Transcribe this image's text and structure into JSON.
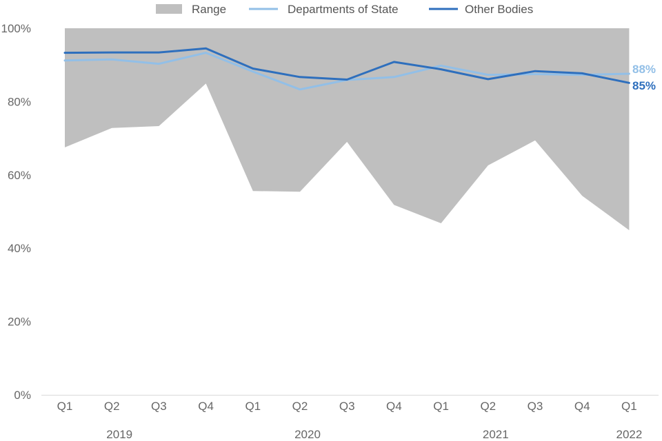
{
  "chart_data": {
    "type": "line",
    "title": "",
    "xlabel": "",
    "ylabel": "",
    "ylim": [
      0,
      100
    ],
    "y_ticks": [
      "0%",
      "20%",
      "40%",
      "60%",
      "80%",
      "100%"
    ],
    "grid": false,
    "legend_placement": "top",
    "categories": [
      "Q1",
      "Q2",
      "Q3",
      "Q4",
      "Q1",
      "Q2",
      "Q3",
      "Q4",
      "Q1",
      "Q2",
      "Q3",
      "Q4",
      "Q1"
    ],
    "year_groups": [
      {
        "label": "2019",
        "start": 0,
        "end": 3
      },
      {
        "label": "2020",
        "start": 4,
        "end": 7
      },
      {
        "label": "2021",
        "start": 8,
        "end": 11
      },
      {
        "label": "2022",
        "start": 12,
        "end": 12
      }
    ],
    "range": {
      "name": "Range",
      "color": "#bfbfbf",
      "upper": [
        100,
        100,
        100,
        100,
        100,
        100,
        100,
        100,
        100,
        100,
        100,
        100,
        100
      ],
      "lower": [
        67.5,
        72.8,
        73.3,
        84.9,
        55.6,
        55.4,
        69.0,
        51.8,
        46.8,
        62.6,
        69.4,
        54.3,
        44.9
      ]
    },
    "series": [
      {
        "name": "Departments of State",
        "color": "#92bfe7",
        "values": [
          91.2,
          91.5,
          90.3,
          93.3,
          88.2,
          83.3,
          85.9,
          86.7,
          89.8,
          87.3,
          87.5,
          87.3,
          87.6
        ],
        "end_label": "88%"
      },
      {
        "name": "Other Bodies",
        "color": "#2e6fbd",
        "values": [
          93.3,
          93.4,
          93.4,
          94.5,
          89.0,
          86.7,
          86.0,
          90.8,
          88.8,
          86.1,
          88.3,
          87.7,
          85.1
        ],
        "end_label": "85%"
      }
    ]
  }
}
